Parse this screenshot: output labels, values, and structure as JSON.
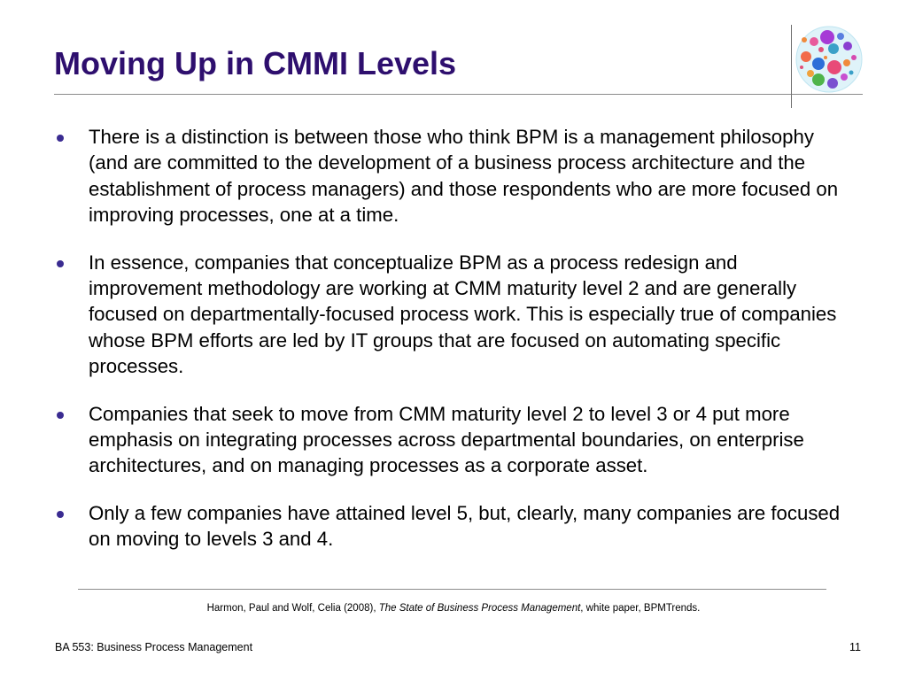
{
  "slide": {
    "title": "Moving Up in CMMI Levels"
  },
  "bullets": [
    "There is a distinction is between those who think BPM is a management philosophy (and are committed to the development of a business process architecture and the establishment of process managers) and those respondents who are more focused on improving processes, one at a time.",
    "In essence, companies that conceptualize BPM as a process redesign and improvement methodology are working at CMM maturity level 2 and are generally focused on departmentally-focused process work. This is especially true of companies whose BPM efforts are led by IT groups that are focused on automating specific processes.",
    "Companies that seek to move from CMM maturity level 2 to level 3 or 4 put more emphasis on integrating processes across departmental boundaries, on enterprise architectures, and on managing processes as a corporate asset.",
    "Only a few companies have attained level 5, but, clearly, many companies are focused on moving to levels 3 and 4."
  ],
  "citation": {
    "authors": "Harmon, Paul  and Wolf, Celia (2008), ",
    "work_title": "The State of Business Process Management",
    "rest": ", white paper, BPMTrends."
  },
  "footer": {
    "course": "BA 553: Business Process Management",
    "page_number": "11"
  },
  "colors": {
    "title": "#2e0f6e",
    "bullet": "#3a2b91"
  },
  "icons": {
    "logo": "colorful-bubbles-logo"
  }
}
